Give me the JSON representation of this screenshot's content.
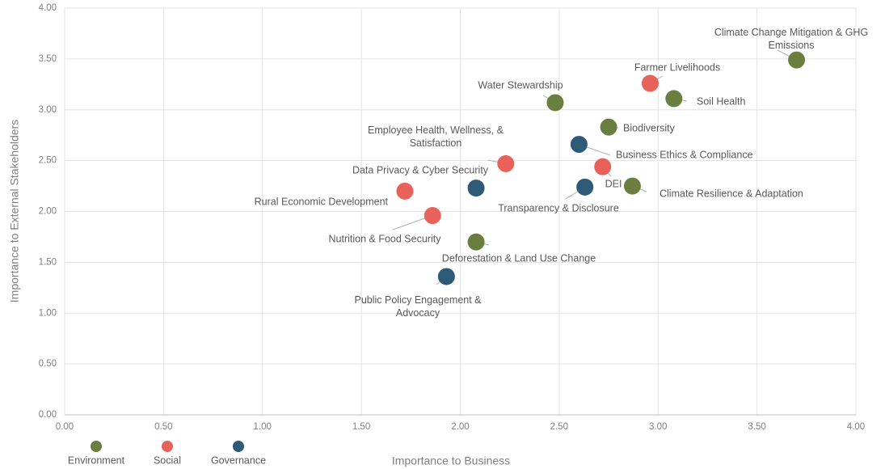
{
  "chart_data": {
    "type": "scatter",
    "xlabel": "Importance to Business",
    "ylabel": "Importance to External Stakeholders",
    "xlim": [
      0,
      4
    ],
    "ylim": [
      0,
      4
    ],
    "xticks": [
      {
        "value": 0,
        "label": "0.00"
      },
      {
        "value": 0.5,
        "label": "0.50"
      },
      {
        "value": 1,
        "label": "1.00"
      },
      {
        "value": 1.5,
        "label": "1.50"
      },
      {
        "value": 2,
        "label": "2.00"
      },
      {
        "value": 2.5,
        "label": "2.50"
      },
      {
        "value": 3,
        "label": "3.00"
      },
      {
        "value": 3.5,
        "label": "3.50"
      },
      {
        "value": 4,
        "label": "4.00"
      }
    ],
    "yticks": [
      {
        "value": 0,
        "label": "0.00"
      },
      {
        "value": 0.5,
        "label": "0.50"
      },
      {
        "value": 1,
        "label": "1.00"
      },
      {
        "value": 1.5,
        "label": "1.50"
      },
      {
        "value": 2,
        "label": "2.00"
      },
      {
        "value": 2.5,
        "label": "2.50"
      },
      {
        "value": 3,
        "label": "3.00"
      },
      {
        "value": 3.5,
        "label": "3.50"
      },
      {
        "value": 4,
        "label": "4.00"
      }
    ],
    "grid": true,
    "legend": "bottom-left",
    "series": [
      {
        "name": "Environment",
        "color": "#6a7f3f",
        "labels": [
          "Climate Change Mitigation & GHG Emissions",
          "Soil Health",
          "Water Stewardship",
          "Biodiversity",
          "Climate Resilience & Adaptation",
          "Deforestation & Land Use Change"
        ],
        "x": [
          3.7,
          3.08,
          2.48,
          2.75,
          2.87,
          2.08
        ],
        "values": [
          3.49,
          3.11,
          3.07,
          2.83,
          2.25,
          1.7
        ]
      },
      {
        "name": "Social",
        "color": "#e8625a",
        "labels": [
          "Farmer Livelihoods",
          "Employee Health, Wellness, & Satisfaction",
          "DEI",
          "Rural Economic Development",
          "Nutrition & Food Security"
        ],
        "x": [
          2.96,
          2.23,
          2.72,
          1.72,
          1.86
        ],
        "values": [
          3.26,
          2.47,
          2.44,
          2.2,
          1.96
        ]
      },
      {
        "name": "Governance",
        "color": "#2d5a77",
        "labels": [
          "Business Ethics & Compliance",
          "Transparency & Disclosure",
          "Data Privacy & Cyber Security",
          "Public Policy Engagement & Advocacy"
        ],
        "x": [
          2.6,
          2.63,
          2.08,
          1.93
        ],
        "values": [
          2.66,
          2.24,
          2.23,
          1.36
        ]
      }
    ]
  }
}
